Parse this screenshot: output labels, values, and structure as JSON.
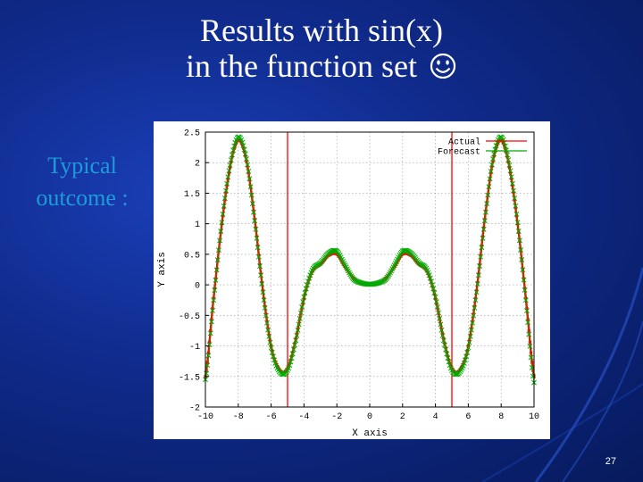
{
  "slide": {
    "title_line1": "Results with sin(x)",
    "title_line2": "in the function set",
    "title_icon": "smiley-icon",
    "side_label_line1": "Typical",
    "side_label_line2": "outcome :",
    "slide_number": "27"
  },
  "colors": {
    "actual": "#ff0000",
    "forecast": "#00aa00",
    "vline": "#ff0000",
    "grid": "#999999",
    "title": "#ffffff",
    "side_label": "#1e9bd8"
  },
  "chart_data": {
    "type": "line",
    "title": "",
    "xlabel": "X axis",
    "ylabel": "Y axis",
    "xlim": [
      -10,
      10
    ],
    "ylim": [
      -2,
      2.5
    ],
    "xticks": [
      -10,
      -8,
      -6,
      -4,
      -2,
      0,
      2,
      4,
      6,
      8,
      10
    ],
    "xtick_labels": [
      "-10",
      "-8",
      "-6",
      "-4",
      "-2",
      "0",
      "2",
      "4",
      "6",
      "8",
      "10"
    ],
    "yticks": [
      -2,
      -1.5,
      -1,
      -0.5,
      0,
      0.5,
      1,
      1.5,
      2,
      2.5
    ],
    "ytick_labels": [
      "-2",
      "-1.5",
      "-1",
      "-0.5",
      "0",
      "0.5",
      "1",
      "1.5",
      "2",
      "2.5"
    ],
    "grid": true,
    "legend": "top-right",
    "vertical_lines": [
      -5,
      5
    ],
    "x": [
      -10,
      -9.5,
      -9,
      -8.5,
      -8,
      -7.5,
      -7,
      -6.5,
      -6,
      -5.5,
      -5,
      -4.5,
      -4,
      -3.5,
      -3,
      -2.5,
      -2,
      -1.5,
      -1,
      -0.5,
      0,
      0.5,
      1,
      1.5,
      2,
      2.5,
      3,
      3.5,
      4,
      4.5,
      5,
      5.5,
      6,
      6.5,
      7,
      7.5,
      8,
      8.5,
      9,
      9.5,
      10
    ],
    "series": [
      {
        "name": "Actual",
        "values": [
          -1.5,
          -0.22,
          1.0,
          1.93,
          2.37,
          2.03,
          1.07,
          -0.1,
          -1.01,
          -1.39,
          -1.37,
          -0.89,
          -0.22,
          0.22,
          0.34,
          0.48,
          0.5,
          0.3,
          0.11,
          0.02,
          0.0,
          0.02,
          0.11,
          0.3,
          0.5,
          0.48,
          0.34,
          0.22,
          -0.22,
          -0.89,
          -1.37,
          -1.39,
          -1.01,
          -0.1,
          1.07,
          2.03,
          2.37,
          1.93,
          1.0,
          -0.22,
          -1.5
        ]
      },
      {
        "name": "Forecast",
        "values": [
          -1.55,
          -0.25,
          1.02,
          1.96,
          2.42,
          2.06,
          1.05,
          -0.12,
          -1.03,
          -1.42,
          -1.4,
          -0.91,
          -0.2,
          0.24,
          0.36,
          0.52,
          0.55,
          0.32,
          0.1,
          0.03,
          0.01,
          0.03,
          0.1,
          0.32,
          0.55,
          0.52,
          0.36,
          0.24,
          -0.2,
          -0.91,
          -1.4,
          -1.42,
          -1.03,
          -0.12,
          1.05,
          2.06,
          2.42,
          1.96,
          1.02,
          -0.25,
          -1.6
        ]
      }
    ]
  }
}
